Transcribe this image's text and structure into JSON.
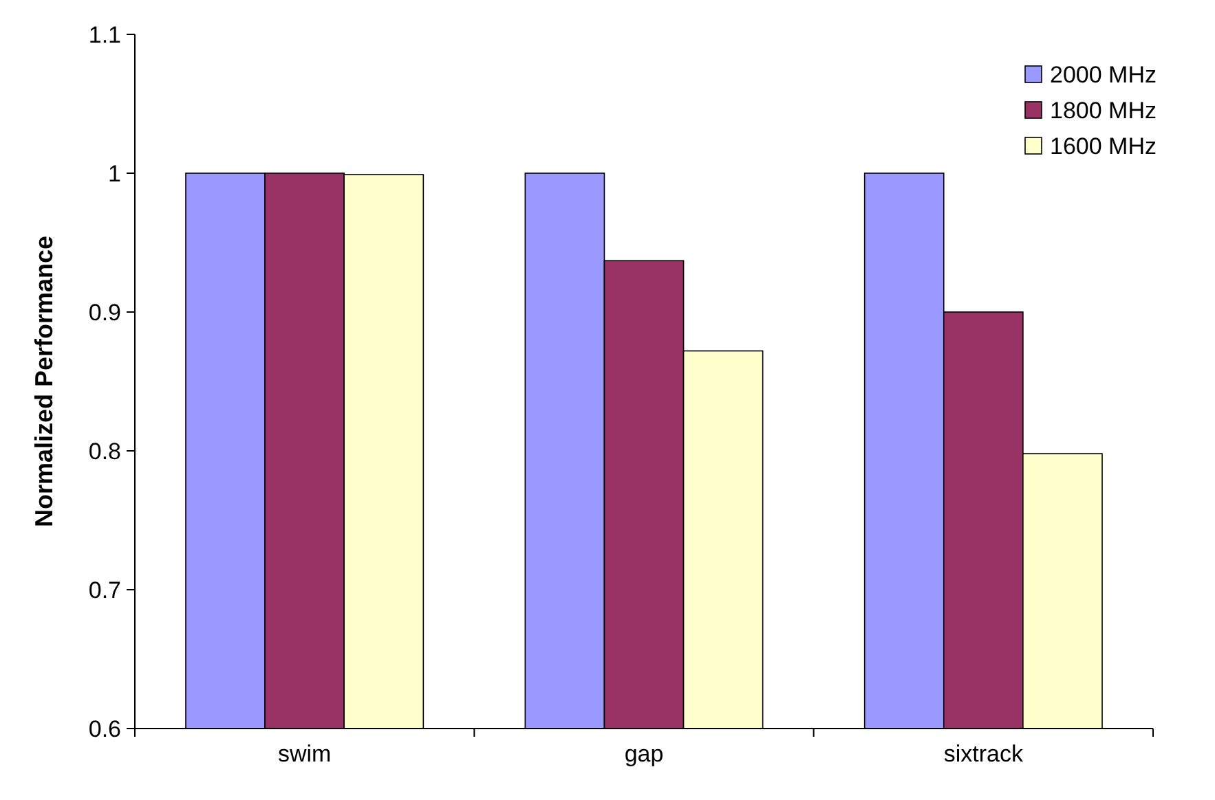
{
  "chart_data": {
    "type": "bar",
    "ylabel": "Normalized Performance",
    "categories": [
      "swim",
      "gap",
      "sixtrack"
    ],
    "series": [
      {
        "name": "2000 MHz",
        "color": "#9999ff",
        "values": [
          1,
          1,
          1
        ]
      },
      {
        "name": "1800 MHz",
        "color": "#993366",
        "values": [
          1,
          0.937,
          0.9
        ]
      },
      {
        "name": "1600 MHz",
        "color": "#ffffcc",
        "values": [
          0.999,
          0.872,
          0.798
        ]
      }
    ],
    "ylim": [
      0.6,
      1.1
    ],
    "yticks": [
      0.6,
      0.7,
      0.8,
      0.9,
      1,
      1.1
    ],
    "legend": "top right",
    "grid": false
  }
}
